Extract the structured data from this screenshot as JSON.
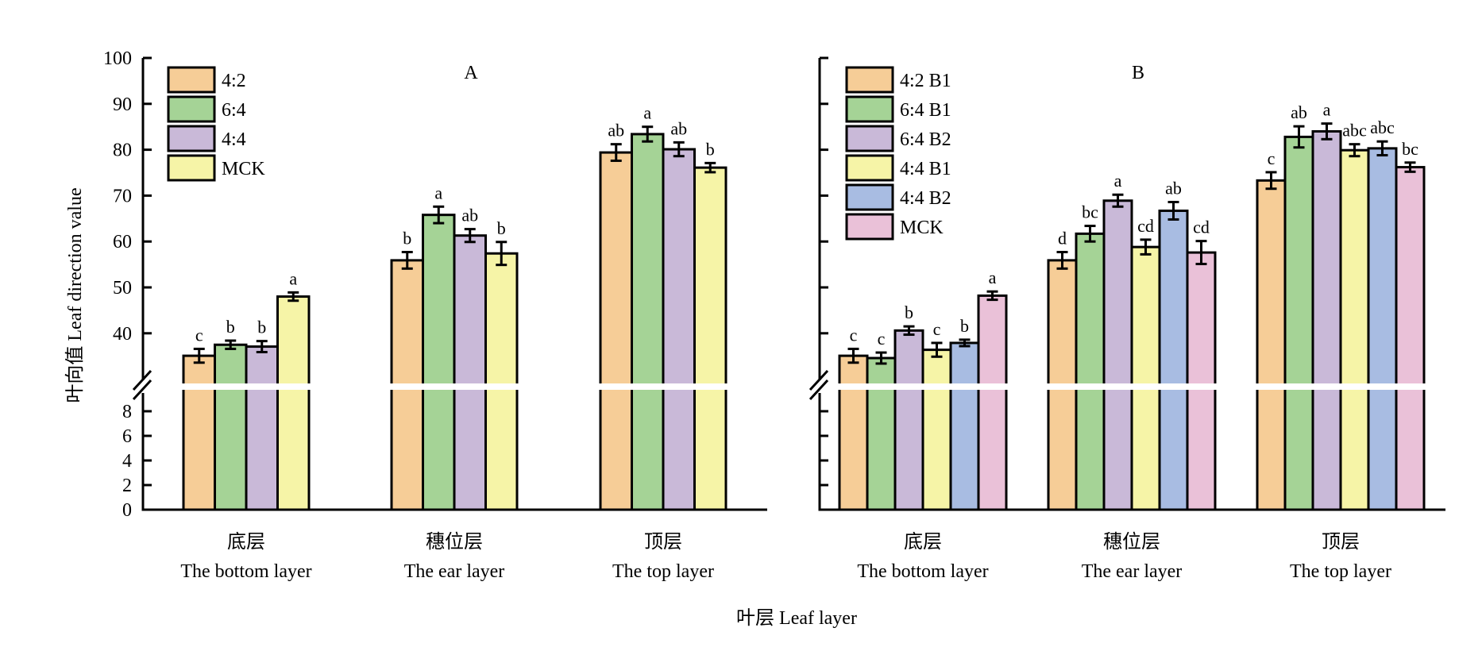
{
  "chart_data": [
    {
      "type": "bar",
      "panel": "A",
      "title": "A",
      "ylabel": "叶向值 Leaf direction value",
      "xlabel": "叶层 Leaf layer",
      "y_axis_break": {
        "lower": [
          0,
          9
        ],
        "upper": [
          33,
          100
        ]
      },
      "yticks_lower": [
        0,
        2,
        4,
        6,
        8
      ],
      "yticks_upper": [
        40,
        50,
        60,
        70,
        80,
        90,
        100
      ],
      "ylim": [
        0,
        100
      ],
      "legend_position": "top-left",
      "categories": [
        {
          "zh": "底层",
          "en": "The bottom layer"
        },
        {
          "zh": "穗位层",
          "en": "The ear layer"
        },
        {
          "zh": "顶层",
          "en": "The top layer"
        }
      ],
      "series": [
        {
          "name": "4:2",
          "color": "#F6CD97",
          "values": [
            35.1,
            55.9,
            79.4
          ],
          "errors": [
            1.5,
            1.8,
            1.8
          ],
          "labels": [
            "c",
            "b",
            "ab"
          ]
        },
        {
          "name": "6:4",
          "color": "#A5D396",
          "values": [
            37.5,
            65.8,
            83.4
          ],
          "errors": [
            0.9,
            1.8,
            1.6
          ],
          "labels": [
            "b",
            "a",
            "a"
          ]
        },
        {
          "name": "4:4",
          "color": "#C9B9D8",
          "values": [
            37.1,
            61.3,
            80.1
          ],
          "errors": [
            1.2,
            1.4,
            1.5
          ],
          "labels": [
            "b",
            "ab",
            "ab"
          ]
        },
        {
          "name": "MCK",
          "color": "#F6F4A7",
          "values": [
            48.0,
            57.4,
            76.1
          ],
          "errors": [
            0.9,
            2.5,
            1.0
          ],
          "labels": [
            "a",
            "b",
            "b"
          ]
        }
      ]
    },
    {
      "type": "bar",
      "panel": "B",
      "title": "B",
      "xlabel": "叶层 Leaf layer",
      "y_axis_break": {
        "lower": [
          0,
          9
        ],
        "upper": [
          33,
          100
        ]
      },
      "yticks_lower": [
        0,
        2,
        4,
        6,
        8
      ],
      "yticks_upper": [
        40,
        50,
        60,
        70,
        80,
        90,
        100
      ],
      "ylim": [
        0,
        100
      ],
      "legend_position": "top-left",
      "categories": [
        {
          "zh": "底层",
          "en": "The bottom layer"
        },
        {
          "zh": "穗位层",
          "en": "The ear layer"
        },
        {
          "zh": "顶层",
          "en": "The top layer"
        }
      ],
      "series": [
        {
          "name": "4:2 B1",
          "color": "#F6CD97",
          "values": [
            35.1,
            55.9,
            73.3
          ],
          "errors": [
            1.5,
            1.8,
            1.8
          ],
          "labels": [
            "c",
            "d",
            "c"
          ]
        },
        {
          "name": "6:4 B1",
          "color": "#A5D396",
          "values": [
            34.6,
            61.7,
            82.8
          ],
          "errors": [
            1.2,
            1.7,
            2.3
          ],
          "labels": [
            "c",
            "bc",
            "ab"
          ]
        },
        {
          "name": "6:4 B2",
          "color": "#C9B9D8",
          "values": [
            40.6,
            68.9,
            84.0
          ],
          "errors": [
            0.9,
            1.3,
            1.7
          ],
          "labels": [
            "b",
            "a",
            "a"
          ]
        },
        {
          "name": "4:4 B1",
          "color": "#F6F4A7",
          "values": [
            36.4,
            58.8,
            79.9
          ],
          "errors": [
            1.5,
            1.6,
            1.3
          ],
          "labels": [
            "c",
            "cd",
            "abc"
          ]
        },
        {
          "name": "4:4 B2",
          "color": "#A8BCE2",
          "values": [
            37.9,
            66.7,
            80.3
          ],
          "errors": [
            0.7,
            1.9,
            1.5
          ],
          "labels": [
            "b",
            "ab",
            "abc"
          ]
        },
        {
          "name": "MCK",
          "color": "#EAC1D8",
          "values": [
            48.2,
            57.6,
            76.2
          ],
          "errors": [
            0.9,
            2.5,
            1.0
          ],
          "labels": [
            "a",
            "cd",
            "bc"
          ]
        }
      ]
    }
  ],
  "shared": {
    "ylabel": "叶向值 Leaf direction value",
    "xlabel": "叶层 Leaf layer"
  }
}
